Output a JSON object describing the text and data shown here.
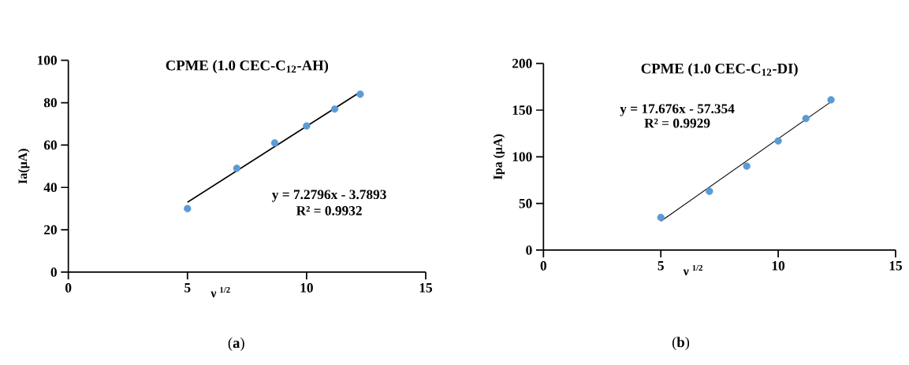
{
  "chart_data": [
    {
      "type": "scatter",
      "title": "CPME (1.0 CEC-C$_{12}$-AH)",
      "xlabel": "ν $^{1/2}$",
      "ylabel": "Ia(μA)",
      "xlim": [
        0,
        15
      ],
      "xticks": [
        0,
        5,
        10,
        15
      ],
      "ylim": [
        0,
        100
      ],
      "yticks": [
        0,
        20,
        40,
        60,
        80,
        100
      ],
      "series": [
        {
          "color": "#5b9bd5",
          "marker": "circle",
          "x": [
            5,
            7.07,
            8.66,
            10,
            11.18,
            12.25
          ],
          "values": [
            30,
            49,
            61,
            69,
            77,
            84
          ]
        },
        {
          "type": "line",
          "marker": "none",
          "color": "#000000",
          "x": [
            5,
            12.25
          ],
          "values": [
            33,
            85
          ]
        }
      ],
      "annotations": [
        "y = 7.2796x - 3.7893",
        "R² = 0.9932",
        "(**a**)"
      ]
    },
    {
      "type": "scatter",
      "title": "CPME (1.0 CEC-C$_{12}$-DI)",
      "xlabel": "ν $^{1/2}$",
      "ylabel": "Ipa (μA)",
      "xlim": [
        0,
        15
      ],
      "xticks": [
        0,
        5,
        10,
        15
      ],
      "ylim": [
        0,
        200
      ],
      "yticks": [
        0,
        50,
        100,
        150,
        200
      ],
      "series": [
        {
          "color": "#5b9bd5",
          "marker": "circle",
          "x": [
            5,
            7.07,
            8.66,
            10,
            11.18,
            12.25
          ],
          "values": [
            35,
            63,
            90,
            117,
            141,
            161
          ]
        },
        {
          "type": "line",
          "marker": "none",
          "color": "#000000",
          "x": [
            5,
            12.25
          ],
          "values": [
            31,
            159
          ]
        }
      ],
      "annotations": [
        "y = 17.676x - 57.354",
        "R² = 0.9929",
        "(**b**)"
      ]
    }
  ]
}
